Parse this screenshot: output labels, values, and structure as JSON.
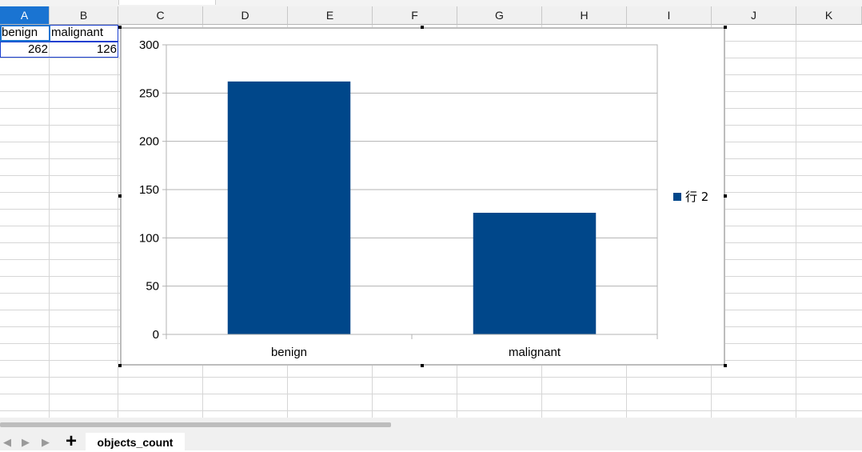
{
  "columns": [
    "A",
    "B",
    "C",
    "D",
    "E",
    "F",
    "G",
    "H",
    "I",
    "J",
    "K"
  ],
  "selected_column": "A",
  "cells": {
    "a1": "benign",
    "b1": "malignant",
    "a2": "262",
    "b2": "126"
  },
  "chart_data": {
    "type": "bar",
    "categories": [
      "benign",
      "malignant"
    ],
    "series": [
      {
        "name": "行  2",
        "values": [
          262,
          126
        ]
      }
    ],
    "ylim": [
      0,
      300
    ],
    "yticks": [
      0,
      50,
      100,
      150,
      200,
      250,
      300
    ],
    "grid": true,
    "legend": "right",
    "bar_color": "#00478a"
  },
  "sheet_tabs": [
    "objects_count"
  ],
  "add_sheet_label": "+"
}
